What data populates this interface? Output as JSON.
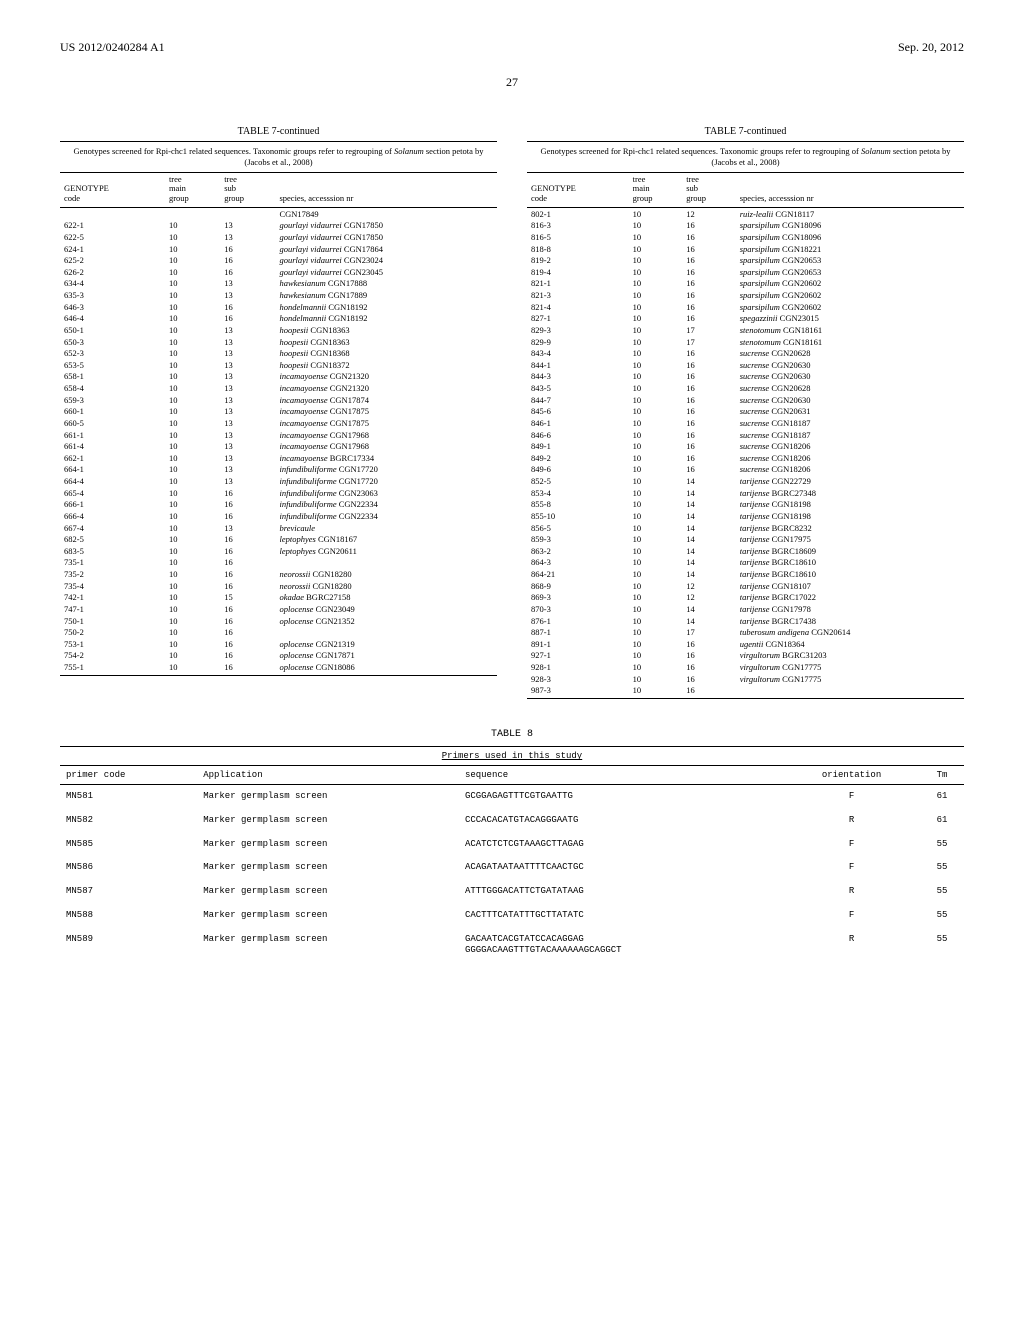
{
  "header": {
    "left": "US 2012/0240284 A1",
    "right": "Sep. 20, 2012"
  },
  "page_number": "27",
  "table7": {
    "title": "TABLE 7-continued",
    "subtitle": "Genotypes screened for Rpi-chc1 related sequences. Taxonomic groups refer to regrouping of <i>Solanum</i> section petota by (Jacobs et al., 2008)",
    "columns": [
      "GENOTYPE code",
      "tree main group",
      "tree sub group",
      "species, accesssion nr"
    ],
    "left_rows": [
      [
        "",
        "",
        "",
        "CGN17849"
      ],
      [
        "622-1",
        "10",
        "13",
        "<i>gourlayi vidaurrei</i> CGN17850"
      ],
      [
        "622-5",
        "10",
        "13",
        "<i>gourlayi vidaurrei</i> CGN17850"
      ],
      [
        "624-1",
        "10",
        "16",
        "<i>gourlayi vidaurrei</i> CGN17864"
      ],
      [
        "625-2",
        "10",
        "16",
        "<i>gourlayi vidaurrei</i> CGN23024"
      ],
      [
        "626-2",
        "10",
        "16",
        "<i>gourlayi vidaurrei</i> CGN23045"
      ],
      [
        "634-4",
        "10",
        "13",
        "<i>hawkesianum</i> CGN17888"
      ],
      [
        "635-3",
        "10",
        "13",
        "<i>hawkesianum</i> CGN17889"
      ],
      [
        "646-3",
        "10",
        "16",
        "<i>hondelmannii</i> CGN18192"
      ],
      [
        "646-4",
        "10",
        "16",
        "<i>hondelmannii</i> CGN18192"
      ],
      [
        "650-1",
        "10",
        "13",
        "<i>hoopesii</i> CGN18363"
      ],
      [
        "650-3",
        "10",
        "13",
        "<i>hoopesii</i> CGN18363"
      ],
      [
        "652-3",
        "10",
        "13",
        "<i>hoopesii</i> CGN18368"
      ],
      [
        "653-5",
        "10",
        "13",
        "<i>hoopesii</i> CGN18372"
      ],
      [
        "658-1",
        "10",
        "13",
        "<i>incamayoense</i> CGN21320"
      ],
      [
        "658-4",
        "10",
        "13",
        "<i>incamayoense</i> CGN21320"
      ],
      [
        "659-3",
        "10",
        "13",
        "<i>incamayoense</i> CGN17874"
      ],
      [
        "660-1",
        "10",
        "13",
        "<i>incamayoense</i> CGN17875"
      ],
      [
        "660-5",
        "10",
        "13",
        "<i>incamayoense</i> CGN17875"
      ],
      [
        "661-1",
        "10",
        "13",
        "<i>incamayoense</i> CGN17968"
      ],
      [
        "661-4",
        "10",
        "13",
        "<i>incamayoense</i> CGN17968"
      ],
      [
        "662-1",
        "10",
        "13",
        "<i>incamayoense</i> BGRC17334"
      ],
      [
        "664-1",
        "10",
        "13",
        "<i>infundibuliforme</i> CGN17720"
      ],
      [
        "664-4",
        "10",
        "13",
        "<i>infundibuliforme</i> CGN17720"
      ],
      [
        "665-4",
        "10",
        "16",
        "<i>infundibuliforme</i> CGN23063"
      ],
      [
        "666-1",
        "10",
        "16",
        "<i>infundibuliforme</i> CGN22334"
      ],
      [
        "666-4",
        "10",
        "16",
        "<i>infundibuliforme</i> CGN22334"
      ],
      [
        "667-4",
        "10",
        "13",
        "<i>brevicaule</i>"
      ],
      [
        "682-5",
        "10",
        "16",
        "<i>leptophyes</i> CGN18167"
      ],
      [
        "683-5",
        "10",
        "16",
        "<i>leptophyes</i> CGN20611"
      ],
      [
        "735-1",
        "10",
        "16",
        ""
      ],
      [
        "735-2",
        "10",
        "16",
        "<i>neorossii</i> CGN18280"
      ],
      [
        "735-4",
        "10",
        "16",
        "<i>neorossii</i> CGN18280"
      ],
      [
        "742-1",
        "10",
        "15",
        "<i>okadae</i> BGRC27158"
      ],
      [
        "747-1",
        "10",
        "16",
        "<i>oplocense</i> CGN23049"
      ],
      [
        "750-1",
        "10",
        "16",
        "<i>oplocense</i> CGN21352"
      ],
      [
        "750-2",
        "10",
        "16",
        ""
      ],
      [
        "753-1",
        "10",
        "16",
        "<i>oplocense</i> CGN21319"
      ],
      [
        "754-2",
        "10",
        "16",
        "<i>oplocense</i> CGN17871"
      ],
      [
        "755-1",
        "10",
        "16",
        "<i>oplocense</i> CGN18086"
      ]
    ],
    "right_rows": [
      [
        "802-1",
        "10",
        "12",
        "<i>ruiz-lealii</i> CGN18117"
      ],
      [
        "816-3",
        "10",
        "16",
        "<i>sparsipilum</i> CGN18096"
      ],
      [
        "816-5",
        "10",
        "16",
        "<i>sparsipilum</i> CGN18096"
      ],
      [
        "818-8",
        "10",
        "16",
        "<i>sparsipilum</i> CGN18221"
      ],
      [
        "819-2",
        "10",
        "16",
        "<i>sparsipilum</i> CGN20653"
      ],
      [
        "819-4",
        "10",
        "16",
        "<i>sparsipilum</i> CGN20653"
      ],
      [
        "821-1",
        "10",
        "16",
        "<i>sparsipilum</i> CGN20602"
      ],
      [
        "821-3",
        "10",
        "16",
        "<i>sparsipilum</i> CGN20602"
      ],
      [
        "821-4",
        "10",
        "16",
        "<i>sparsipilum</i> CGN20602"
      ],
      [
        "827-1",
        "10",
        "16",
        "<i>spegazzinii</i> CGN23015"
      ],
      [
        "829-3",
        "10",
        "17",
        "<i>stenotomum</i> CGN18161"
      ],
      [
        "829-9",
        "10",
        "17",
        "<i>stenotomum</i> CGN18161"
      ],
      [
        "843-4",
        "10",
        "16",
        "<i>sucrense</i> CGN20628"
      ],
      [
        "844-1",
        "10",
        "16",
        "<i>sucrense</i> CGN20630"
      ],
      [
        "844-3",
        "10",
        "16",
        "<i>sucrense</i> CGN20630"
      ],
      [
        "843-5",
        "10",
        "16",
        "<i>sucrense</i> CGN20628"
      ],
      [
        "844-7",
        "10",
        "16",
        "<i>sucrense</i> CGN20630"
      ],
      [
        "845-6",
        "10",
        "16",
        "<i>sucrense</i> CGN20631"
      ],
      [
        "846-1",
        "10",
        "16",
        "<i>sucrense</i> CGN18187"
      ],
      [
        "846-6",
        "10",
        "16",
        "<i>sucrense</i> CGN18187"
      ],
      [
        "849-1",
        "10",
        "16",
        "<i>sucrense</i> CGN18206"
      ],
      [
        "849-2",
        "10",
        "16",
        "<i>sucrense</i> CGN18206"
      ],
      [
        "849-6",
        "10",
        "16",
        "<i>sucrense</i> CGN18206"
      ],
      [
        "852-5",
        "10",
        "14",
        "<i>tarijense</i> CGN22729"
      ],
      [
        "853-4",
        "10",
        "14",
        "<i>tarijense</i> BGRC27348"
      ],
      [
        "855-8",
        "10",
        "14",
        "<i>tarijense</i> CGN18198"
      ],
      [
        "855-10",
        "10",
        "14",
        "<i>tarijense</i> CGN18198"
      ],
      [
        "856-5",
        "10",
        "14",
        "<i>tarijense</i> BGRC8232"
      ],
      [
        "859-3",
        "10",
        "14",
        "<i>tarijense</i> CGN17975"
      ],
      [
        "863-2",
        "10",
        "14",
        "<i>tarijense</i> BGRC18609"
      ],
      [
        "864-3",
        "10",
        "14",
        "<i>tarijense</i> BGRC18610"
      ],
      [
        "864-21",
        "10",
        "14",
        "<i>tarijense</i> BGRC18610"
      ],
      [
        "868-9",
        "10",
        "12",
        "<i>tarijense</i> CGN18107"
      ],
      [
        "869-3",
        "10",
        "12",
        "<i>tarijense</i> BGRC17022"
      ],
      [
        "870-3",
        "10",
        "14",
        "<i>tarijense</i> CGN17978"
      ],
      [
        "876-1",
        "10",
        "14",
        "<i>tarijense</i> BGRC17438"
      ],
      [
        "887-1",
        "10",
        "17",
        "<i>tuberosum andigena</i> CGN20614"
      ],
      [
        "891-1",
        "10",
        "16",
        "<i>ugentii</i> CGN18364"
      ],
      [
        "927-1",
        "10",
        "16",
        "<i>virgultorum</i> BGRC31203"
      ],
      [
        "928-1",
        "10",
        "16",
        "<i>virgultorum</i> CGN17775"
      ],
      [
        "928-3",
        "10",
        "16",
        "<i>virgultorum</i> CGN17775"
      ],
      [
        "987-3",
        "10",
        "16",
        ""
      ]
    ]
  },
  "table8": {
    "title": "TABLE 8",
    "caption": "Primers used in this study",
    "columns": [
      "primer code",
      "Application",
      "sequence",
      "orientation",
      "Tm"
    ],
    "rows": [
      [
        "MN581",
        "Marker germplasm screen",
        "GCGGAGAGTTTCGTGAATTG",
        "F",
        "61"
      ],
      [
        "MN582",
        "Marker germplasm screen",
        "CCCACACATGTACAGGGAATG",
        "R",
        "61"
      ],
      [
        "MN585",
        "Marker germplasm screen",
        "ACATCTCTCGTAAAGCTTAGAG",
        "F",
        "55"
      ],
      [
        "MN586",
        "Marker germplasm screen",
        "ACAGATAATAATTTTCAACTGC",
        "F",
        "55"
      ],
      [
        "MN587",
        "Marker germplasm screen",
        "ATTTGGGACATTCTGATATAAG",
        "R",
        "55"
      ],
      [
        "MN588",
        "Marker germplasm screen",
        "CACTTTCATATTTGCTTATATC",
        "F",
        "55"
      ],
      [
        "MN589",
        "Marker germplasm screen",
        "GACAATCACGTATCCACAGGAG\nGGGGACAAGTTTGTACAAAAAAGCAGGCT",
        "R",
        "55"
      ]
    ]
  }
}
